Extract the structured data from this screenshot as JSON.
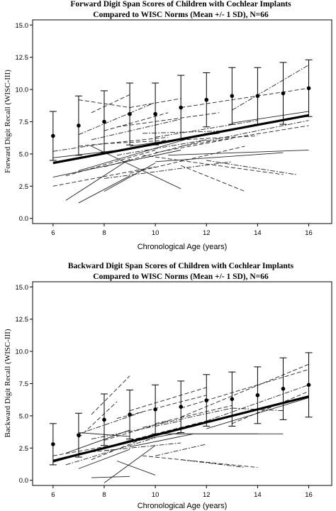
{
  "chart_data": [
    {
      "type": "line",
      "title": "Forward Digit Span Scores of Children with Cochlear Implants",
      "subtitle": "Compared to WISC Norms (Mean +/- 1 SD), N=66",
      "xlabel": "Chronological Age (years)",
      "ylabel": "Forward Digit Recall (WISC-III)",
      "x_ticks": [
        6,
        8,
        10,
        12,
        14,
        16
      ],
      "y_ticks": [
        0.0,
        2.5,
        5.0,
        7.5,
        10.0,
        12.5,
        15.0
      ],
      "y_tick_labels": [
        "0.0",
        "2.5",
        "5.0",
        "7.5",
        "10.0",
        "12.5",
        "15.0"
      ],
      "xlim": [
        5.2,
        16.9
      ],
      "ylim": [
        -0.4,
        15.4
      ],
      "grid": false,
      "norms": {
        "x": [
          6,
          7,
          8,
          9,
          10,
          11,
          12,
          13,
          14,
          15,
          16
        ],
        "mean": [
          6.4,
          7.2,
          7.5,
          8.1,
          8.1,
          8.6,
          9.2,
          9.5,
          9.5,
          9.7,
          10.1
        ],
        "sd": [
          1.9,
          2.3,
          2.4,
          2.4,
          2.4,
          2.5,
          2.1,
          2.2,
          2.2,
          2.4,
          2.2
        ]
      },
      "group_fit": {
        "x": [
          6,
          16
        ],
        "y": [
          4.3,
          8.0
        ]
      },
      "individual_lines": [
        {
          "x": [
            6,
            9
          ],
          "y": [
            4.7,
            5.4
          ],
          "dash": "solid"
        },
        {
          "x": [
            6,
            10
          ],
          "y": [
            2.5,
            4.0
          ],
          "dash": "dash"
        },
        {
          "x": [
            6,
            11
          ],
          "y": [
            3.2,
            5.3
          ],
          "dash": "solid"
        },
        {
          "x": [
            6,
            8
          ],
          "y": [
            5.2,
            5.8
          ],
          "dash": "dashdot"
        },
        {
          "x": [
            6.5,
            9
          ],
          "y": [
            1.4,
            4.6
          ],
          "dash": "solid"
        },
        {
          "x": [
            6.5,
            10
          ],
          "y": [
            3.3,
            5.3
          ],
          "dash": "dash"
        },
        {
          "x": [
            7,
            9
          ],
          "y": [
            1.2,
            3.3
          ],
          "dash": "solid"
        },
        {
          "x": [
            7,
            10.5
          ],
          "y": [
            5.6,
            6.3
          ],
          "dash": "dash"
        },
        {
          "x": [
            7,
            10
          ],
          "y": [
            6.5,
            9.0
          ],
          "dash": "dashdot"
        },
        {
          "x": [
            7,
            12
          ],
          "y": [
            3.7,
            6.6
          ],
          "dash": "solid"
        },
        {
          "x": [
            7,
            9
          ],
          "y": [
            9.2,
            8.6
          ],
          "dash": "dash"
        },
        {
          "x": [
            7.5,
            9
          ],
          "y": [
            8.2,
            9.6
          ],
          "dash": "dash"
        },
        {
          "x": [
            7.5,
            11
          ],
          "y": [
            6.1,
            7.7
          ],
          "dash": "dashdot"
        },
        {
          "x": [
            7.5,
            11
          ],
          "y": [
            5.6,
            2.3
          ],
          "dash": "solid"
        },
        {
          "x": [
            8,
            12
          ],
          "y": [
            4.0,
            6.1
          ],
          "dash": "dash"
        },
        {
          "x": [
            8,
            10
          ],
          "y": [
            2.1,
            4.3
          ],
          "dash": "solid"
        },
        {
          "x": [
            8,
            13
          ],
          "y": [
            3.1,
            4.4
          ],
          "dash": "dashdot"
        },
        {
          "x": [
            8,
            14
          ],
          "y": [
            5.8,
            6.4
          ],
          "dash": "dash"
        },
        {
          "x": [
            8,
            10.5
          ],
          "y": [
            6.8,
            8.2
          ],
          "dash": "dash"
        },
        {
          "x": [
            8.5,
            12
          ],
          "y": [
            4.9,
            6.1
          ],
          "dash": "dashdot"
        },
        {
          "x": [
            8.5,
            12.5
          ],
          "y": [
            7.1,
            8.2
          ],
          "dash": "dash"
        },
        {
          "x": [
            9,
            13.5
          ],
          "y": [
            3.5,
            5.6
          ],
          "dash": "dash"
        },
        {
          "x": [
            9,
            11
          ],
          "y": [
            8.6,
            9.3
          ],
          "dash": "dash"
        },
        {
          "x": [
            9,
            12.5
          ],
          "y": [
            5.6,
            6.6
          ],
          "dash": "solid"
        },
        {
          "x": [
            9.5,
            13
          ],
          "y": [
            6.6,
            6.8
          ],
          "dash": "dashdot"
        },
        {
          "x": [
            9.5,
            15
          ],
          "y": [
            4.9,
            3.4
          ],
          "dash": "dash"
        },
        {
          "x": [
            10,
            15
          ],
          "y": [
            4.4,
            5.1
          ],
          "dash": "solid"
        },
        {
          "x": [
            10,
            13
          ],
          "y": [
            5.1,
            6.2
          ],
          "dash": "dash"
        },
        {
          "x": [
            10,
            14
          ],
          "y": [
            6.3,
            7.6
          ],
          "dash": "dashdot"
        },
        {
          "x": [
            10.5,
            16
          ],
          "y": [
            4.9,
            5.3
          ],
          "dash": "solid"
        },
        {
          "x": [
            11,
            16
          ],
          "y": [
            5.6,
            7.2
          ],
          "dash": "dash"
        },
        {
          "x": [
            11,
            13.5
          ],
          "y": [
            4.1,
            2.1
          ],
          "dash": "dash"
        },
        {
          "x": [
            11,
            16
          ],
          "y": [
            8.6,
            10.1
          ],
          "dash": "dash"
        },
        {
          "x": [
            12,
            16
          ],
          "y": [
            6.0,
            7.6
          ],
          "dash": "dashdot"
        },
        {
          "x": [
            12,
            15.5
          ],
          "y": [
            4.5,
            3.4
          ],
          "dash": "dashdot"
        },
        {
          "x": [
            13,
            16
          ],
          "y": [
            8.4,
            11.9
          ],
          "dash": "dashdot"
        },
        {
          "x": [
            13,
            16
          ],
          "y": [
            7.4,
            8.3
          ],
          "dash": "solid"
        }
      ]
    },
    {
      "type": "line",
      "title": "Backward Digit Span Scores of Children with Cochlear Implants",
      "subtitle": "Compared to WISC Norms (Mean +/- 1 SD), N=66",
      "xlabel": "Chronological Age (years)",
      "ylabel": "Backward Digit Recall (WISC-III)",
      "x_ticks": [
        6,
        8,
        10,
        12,
        14,
        16
      ],
      "y_ticks": [
        0.0,
        2.5,
        5.0,
        7.5,
        10.0,
        12.5,
        15.0
      ],
      "y_tick_labels": [
        "0.0",
        "2.5",
        "5.0",
        "7.5",
        "10.0",
        "12.5",
        "15.0"
      ],
      "xlim": [
        5.2,
        16.9
      ],
      "ylim": [
        -0.4,
        15.4
      ],
      "grid": false,
      "norms": {
        "x": [
          6,
          7,
          8,
          9,
          10,
          11,
          12,
          13,
          14,
          15,
          16
        ],
        "mean": [
          2.8,
          3.5,
          4.7,
          5.1,
          5.5,
          5.7,
          6.2,
          6.3,
          6.6,
          7.1,
          7.4
        ],
        "sd": [
          1.6,
          1.7,
          2.0,
          1.9,
          1.9,
          2.0,
          2.0,
          2.1,
          2.2,
          2.4,
          2.5
        ]
      },
      "group_fit": {
        "x": [
          6,
          16
        ],
        "y": [
          1.5,
          6.5
        ]
      },
      "individual_lines": [
        {
          "x": [
            6,
            9
          ],
          "y": [
            1.4,
            3.1
          ],
          "dash": "solid"
        },
        {
          "x": [
            6,
            8
          ],
          "y": [
            1.9,
            2.6
          ],
          "dash": "dash"
        },
        {
          "x": [
            6.5,
            10
          ],
          "y": [
            1.2,
            3.3
          ],
          "dash": "dashdot"
        },
        {
          "x": [
            6.5,
            9
          ],
          "y": [
            2.1,
            3.9
          ],
          "dash": "solid"
        },
        {
          "x": [
            7,
            8.5
          ],
          "y": [
            2.1,
            2.4
          ],
          "dash": "dash"
        },
        {
          "x": [
            7,
            9
          ],
          "y": [
            0.9,
            2.4
          ],
          "dash": "solid"
        },
        {
          "x": [
            7,
            8.5
          ],
          "y": [
            3.3,
            6.1
          ],
          "dash": "dash"
        },
        {
          "x": [
            7,
            9.5
          ],
          "y": [
            3.6,
            5.3
          ],
          "dash": "dashdot"
        },
        {
          "x": [
            7,
            9
          ],
          "y": [
            3.7,
            3.4
          ],
          "dash": "solid"
        },
        {
          "x": [
            7.5,
            9
          ],
          "y": [
            0.2,
            0.3
          ],
          "dash": "solid"
        },
        {
          "x": [
            7.5,
            10
          ],
          "y": [
            1.6,
            3.6
          ],
          "dash": "dash"
        },
        {
          "x": [
            7.5,
            9
          ],
          "y": [
            5.1,
            8.1
          ],
          "dash": "dash"
        },
        {
          "x": [
            7.5,
            11
          ],
          "y": [
            3.2,
            4.6
          ],
          "dash": "dashdot"
        },
        {
          "x": [
            8,
            10
          ],
          "y": [
            -0.2,
            2.7
          ],
          "dash": "solid"
        },
        {
          "x": [
            8,
            10.5
          ],
          "y": [
            3.1,
            4.6
          ],
          "dash": "dash"
        },
        {
          "x": [
            8,
            11
          ],
          "y": [
            2.6,
            3.7
          ],
          "dash": "solid"
        },
        {
          "x": [
            8,
            11
          ],
          "y": [
            2.3,
            2.9
          ],
          "dash": "dashdot"
        },
        {
          "x": [
            8.5,
            12
          ],
          "y": [
            4.8,
            6.6
          ],
          "dash": "dash"
        },
        {
          "x": [
            8.5,
            10
          ],
          "y": [
            1.5,
            0.4
          ],
          "dash": "solid"
        },
        {
          "x": [
            9,
            12
          ],
          "y": [
            3.1,
            4.6
          ],
          "dash": "dash"
        },
        {
          "x": [
            9,
            12
          ],
          "y": [
            5.4,
            7.2
          ],
          "dash": "dash"
        },
        {
          "x": [
            9,
            11.5
          ],
          "y": [
            2.6,
            3.6
          ],
          "dash": "solid"
        },
        {
          "x": [
            9.5,
            13
          ],
          "y": [
            4.1,
            5.6
          ],
          "dash": "dashdot"
        },
        {
          "x": [
            9.5,
            14
          ],
          "y": [
            1.9,
            1.0
          ],
          "dash": "dash"
        },
        {
          "x": [
            10,
            14
          ],
          "y": [
            3.6,
            3.6
          ],
          "dash": "solid"
        },
        {
          "x": [
            10,
            13
          ],
          "y": [
            4.4,
            5.8
          ],
          "dash": "dash"
        },
        {
          "x": [
            10,
            12
          ],
          "y": [
            1.9,
            2.8
          ],
          "dash": "dashdot"
        },
        {
          "x": [
            10.5,
            15
          ],
          "y": [
            3.6,
            3.6
          ],
          "dash": "solid"
        },
        {
          "x": [
            11,
            13.5
          ],
          "y": [
            1.6,
            1.0
          ],
          "dash": "dashdot"
        },
        {
          "x": [
            11,
            16
          ],
          "y": [
            5.6,
            8.6
          ],
          "dash": "dash"
        },
        {
          "x": [
            11,
            16
          ],
          "y": [
            4.9,
            9.0
          ],
          "dash": "dash"
        },
        {
          "x": [
            12,
            16
          ],
          "y": [
            4.6,
            7.4
          ],
          "dash": "dashdot"
        },
        {
          "x": [
            12,
            16
          ],
          "y": [
            4.0,
            6.4
          ],
          "dash": "solid"
        },
        {
          "x": [
            13,
            16
          ],
          "y": [
            4.4,
            6.9
          ],
          "dash": "dash"
        },
        {
          "x": [
            13,
            15
          ],
          "y": [
            5.6,
            5.4
          ],
          "dash": "dashdot"
        }
      ]
    }
  ]
}
